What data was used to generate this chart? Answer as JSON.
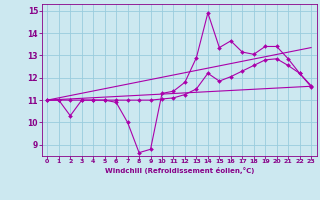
{
  "background_color": "#cce8f0",
  "grid_color": "#99ccdd",
  "line_color": "#aa00aa",
  "spine_color": "#880088",
  "tick_color": "#880088",
  "xlabel": "Windchill (Refroidissement éolien,°C)",
  "xticks": [
    0,
    1,
    2,
    3,
    4,
    5,
    6,
    7,
    8,
    9,
    10,
    11,
    12,
    13,
    14,
    15,
    16,
    17,
    18,
    19,
    20,
    21,
    22,
    23
  ],
  "yticks": [
    9,
    10,
    11,
    12,
    13,
    14,
    15
  ],
  "xlim": [
    -0.5,
    23.5
  ],
  "ylim": [
    8.5,
    15.3
  ],
  "series1_x": [
    0,
    1,
    2,
    3,
    4,
    5,
    6,
    7,
    8,
    9,
    10,
    11,
    12,
    13,
    14,
    15,
    16,
    17,
    18,
    19,
    20,
    21,
    22,
    23
  ],
  "series1_y": [
    11.0,
    11.0,
    10.3,
    11.0,
    11.0,
    11.0,
    10.9,
    10.0,
    8.65,
    8.8,
    11.3,
    11.4,
    11.8,
    12.9,
    14.9,
    13.35,
    13.65,
    13.15,
    13.05,
    13.4,
    13.4,
    12.85,
    12.2,
    11.6
  ],
  "series2_x": [
    0,
    1,
    2,
    3,
    4,
    5,
    6,
    7,
    8,
    9,
    10,
    11,
    12,
    13,
    14,
    15,
    16,
    17,
    18,
    19,
    20,
    21,
    22,
    23
  ],
  "series2_y": [
    11.0,
    11.0,
    11.0,
    11.0,
    11.0,
    11.0,
    11.0,
    11.0,
    11.0,
    11.0,
    11.05,
    11.1,
    11.25,
    11.5,
    12.2,
    11.85,
    12.05,
    12.3,
    12.55,
    12.8,
    12.85,
    12.55,
    12.2,
    11.65
  ],
  "trend1_x": [
    0,
    23
  ],
  "trend1_y": [
    11.0,
    13.35
  ],
  "trend2_x": [
    0,
    23
  ],
  "trend2_y": [
    11.0,
    11.62
  ]
}
